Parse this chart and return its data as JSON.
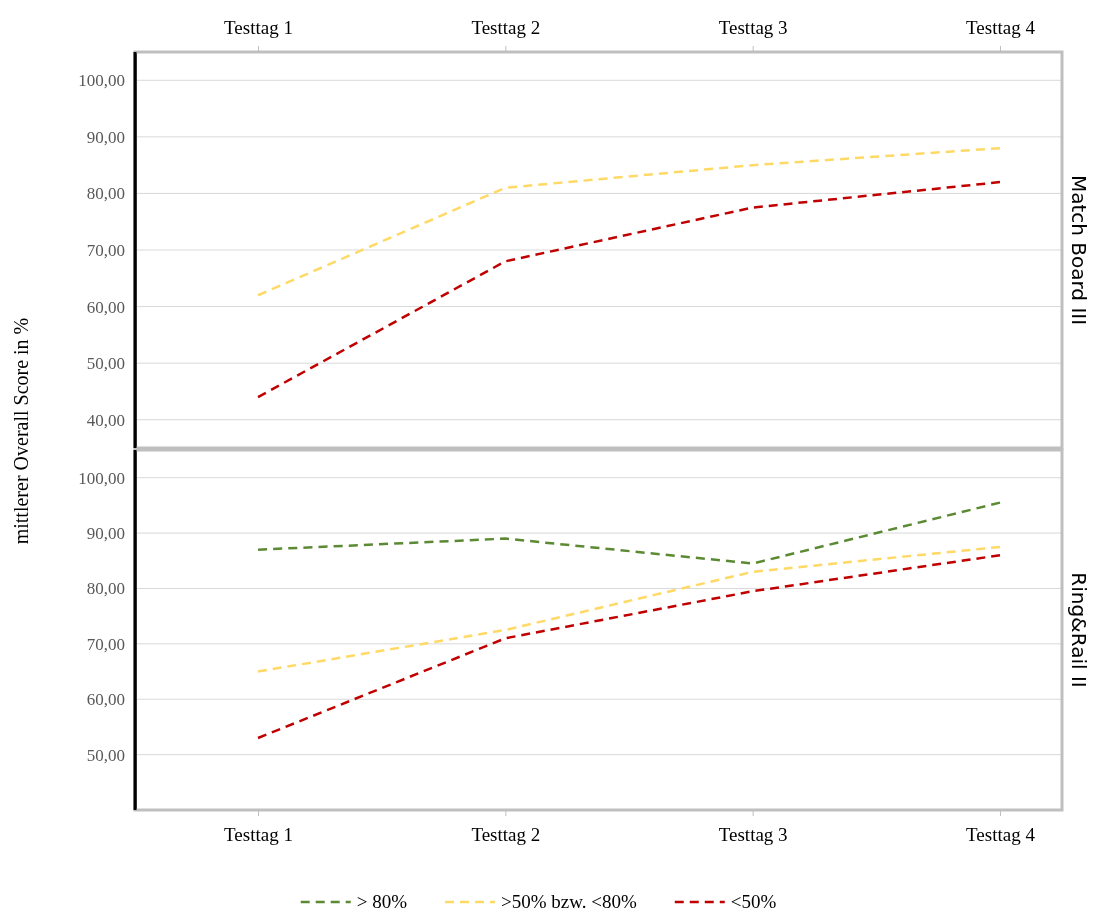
{
  "chart_data": [
    {
      "type": "line",
      "title": "Match Board III",
      "ylabel": "mittlerer Overall Score in %",
      "categories": [
        "Testtag 1",
        "Testtag 2",
        "Testtag 3",
        "Testtag 4"
      ],
      "series": [
        {
          "color": "#ffd966",
          "values": [
            62,
            81,
            85,
            88
          ]
        },
        {
          "color": "#c00000",
          "values": [
            44,
            68,
            77.5,
            82
          ]
        }
      ],
      "ylim": [
        35,
        105
      ],
      "yticks": [
        {
          "value": 40,
          "label": "40,00"
        },
        {
          "value": 50,
          "label": "50,00"
        },
        {
          "value": 60,
          "label": "60,00"
        },
        {
          "value": 70,
          "label": "70,00"
        },
        {
          "value": 80,
          "label": "80,00"
        },
        {
          "value": 90,
          "label": "90,00"
        },
        {
          "value": 100,
          "label": "100,00"
        }
      ],
      "grid": "y",
      "legend": false,
      "line_style": "dashed",
      "marker": "none"
    },
    {
      "type": "line",
      "title": "Ring&Rail II",
      "categories": [
        "Testtag 1",
        "Testtag 2",
        "Testtag 3",
        "Testtag 4"
      ],
      "series": [
        {
          "name": "> 80%",
          "color": "#5b8a32",
          "values": [
            87,
            89,
            84.5,
            95.5
          ]
        },
        {
          "name": ">50% bzw. <80%",
          "color": "#ffd966",
          "values": [
            65,
            72.5,
            83,
            87.5
          ]
        },
        {
          "name": "<50%",
          "color": "#c00000",
          "values": [
            53,
            71,
            79.5,
            86
          ]
        }
      ],
      "ylim": [
        40,
        105
      ],
      "yticks": [
        {
          "value": 50,
          "label": "50,00"
        },
        {
          "value": 60,
          "label": "60,00"
        },
        {
          "value": 70,
          "label": "70,00"
        },
        {
          "value": 80,
          "label": "80,00"
        },
        {
          "value": 90,
          "label": "90,00"
        },
        {
          "value": 100,
          "label": "100,00"
        }
      ],
      "grid": "y",
      "legend": "bottom",
      "line_style": "dashed",
      "marker": "none"
    }
  ]
}
